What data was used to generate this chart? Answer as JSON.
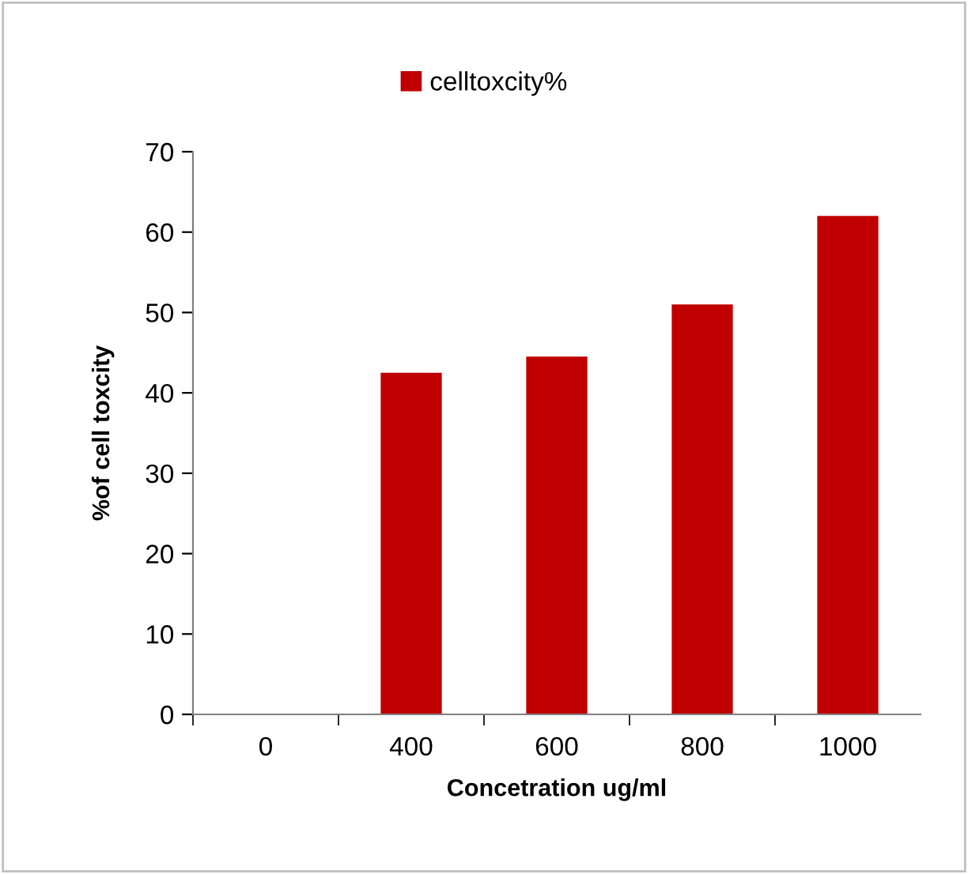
{
  "chart_data": {
    "type": "bar",
    "xlabel": "Concetration ug/ml",
    "ylabel": "%of cell toxcity",
    "categories": [
      "0",
      "400",
      "600",
      "800",
      "1000"
    ],
    "series": [
      {
        "name": "celltoxcity%",
        "color": "#c00000",
        "values": [
          0,
          42.5,
          44.5,
          51,
          62
        ]
      }
    ],
    "ylim": [
      0,
      70
    ],
    "yticks": [
      0,
      10,
      20,
      30,
      40,
      50,
      60,
      70
    ],
    "grid": false,
    "legend": "top"
  }
}
